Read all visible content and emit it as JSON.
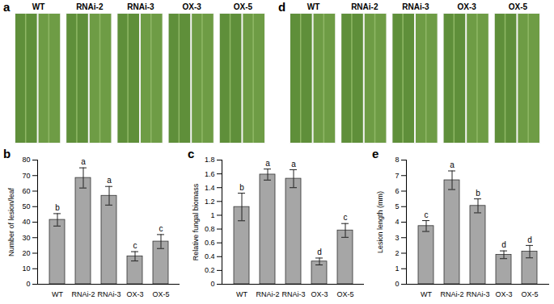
{
  "photos": [
    {
      "panel": "a",
      "labels": [
        "WT",
        "RNAi-2",
        "RNAi-3",
        "OX-3",
        "OX-5"
      ]
    },
    {
      "panel": "d",
      "labels": [
        "WT",
        "RNAi-2",
        "RNAi-3",
        "OX-3",
        "OX-5"
      ]
    }
  ],
  "chart_data": [
    {
      "type": "bar",
      "panel": "b",
      "y_label": "Number of lesion/leaf",
      "categories": [
        "WT",
        "RNAi-2",
        "RNAi-3",
        "OX-3",
        "OX-5"
      ],
      "values": [
        41.5,
        68.5,
        57,
        18,
        27.5
      ],
      "errors": [
        4,
        6.5,
        6,
        3,
        4.5
      ],
      "letters": [
        "b",
        "a",
        "a",
        "c",
        "c"
      ],
      "color": "#a6a6a6",
      "ylim": [
        0,
        80
      ],
      "yticks": [
        0,
        10,
        20,
        30,
        40,
        50,
        60,
        70,
        80
      ],
      "grid": false
    },
    {
      "type": "bar",
      "panel": "c",
      "y_label": "Relative fungal biomass",
      "categories": [
        "WT",
        "RNAi-2",
        "RNAi-3",
        "OX-3",
        "OX-5"
      ],
      "values": [
        1.12,
        1.59,
        1.53,
        0.33,
        0.78
      ],
      "errors": [
        0.2,
        0.08,
        0.13,
        0.05,
        0.1
      ],
      "letters": [
        "b",
        "a",
        "a",
        "d",
        "c"
      ],
      "color": "#a6a6a6",
      "ylim": [
        0,
        1.8
      ],
      "yticks": [
        0,
        0.2,
        0.4,
        0.6,
        0.8,
        1,
        1.2,
        1.4,
        1.6,
        1.8
      ],
      "grid": false
    },
    {
      "type": "bar",
      "panel": "e",
      "y_label": "Lesion length (mm)",
      "categories": [
        "WT",
        "RNAi-2",
        "RNAi-3",
        "OX-3",
        "OX-5"
      ],
      "values": [
        3.75,
        6.7,
        5.05,
        1.9,
        2.1
      ],
      "errors": [
        0.35,
        0.6,
        0.45,
        0.25,
        0.4
      ],
      "letters": [
        "c",
        "a",
        "b",
        "d",
        "d"
      ],
      "color": "#a6a6a6",
      "ylim": [
        0,
        8
      ],
      "yticks": [
        0,
        1,
        2,
        3,
        4,
        5,
        6,
        7,
        8
      ],
      "grid": false
    }
  ]
}
